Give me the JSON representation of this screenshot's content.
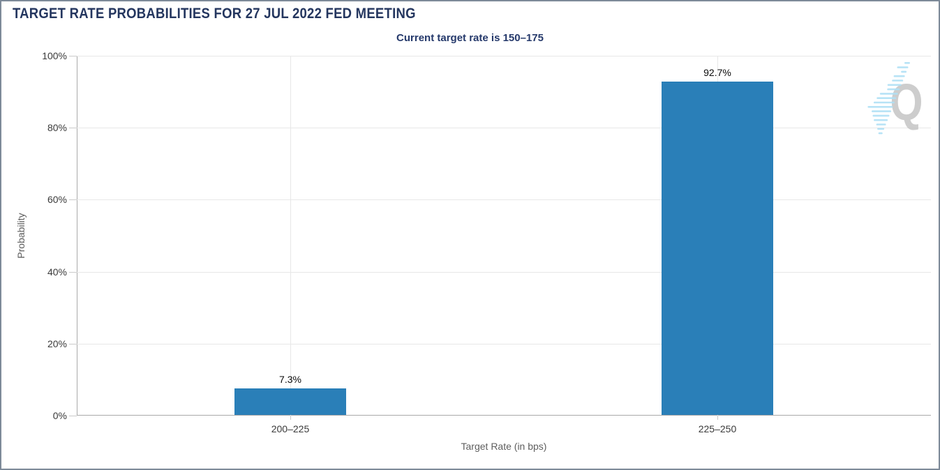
{
  "chart_data": {
    "type": "bar",
    "title": "TARGET RATE PROBABILITIES FOR 27 JUL 2022 FED MEETING",
    "subtitle": "Current target rate is 150–175",
    "categories": [
      "200–225",
      "225–250"
    ],
    "values": [
      7.3,
      92.7
    ],
    "value_labels": [
      "7.3%",
      "92.7%"
    ],
    "xlabel": "Target Rate (in bps)",
    "ylabel": "Probability",
    "ylim": [
      0,
      100
    ],
    "ytick_step": 20,
    "ytick_labels": [
      "0%",
      "20%",
      "40%",
      "60%",
      "80%",
      "100%"
    ],
    "grid": true,
    "legend": "none",
    "bar_color": "#2A7FB8"
  },
  "watermark": {
    "icon": "quikstrike-logo",
    "letter": "Q"
  },
  "colors": {
    "title": "#24365F",
    "subtitle": "#25396B",
    "bar": "#2A7FB8",
    "axis_line": "#A9A9A9",
    "grid_line": "#E7E7E7",
    "tick": "#C9C9C9",
    "axis_text": "#3A3A3A",
    "axis_title_text": "#5E5E5E",
    "value_label": "#0A0A0A",
    "frame_border": "#7D8A99",
    "watermark_gray": "#C5C5C5",
    "watermark_blue": "#AFE0F5"
  }
}
